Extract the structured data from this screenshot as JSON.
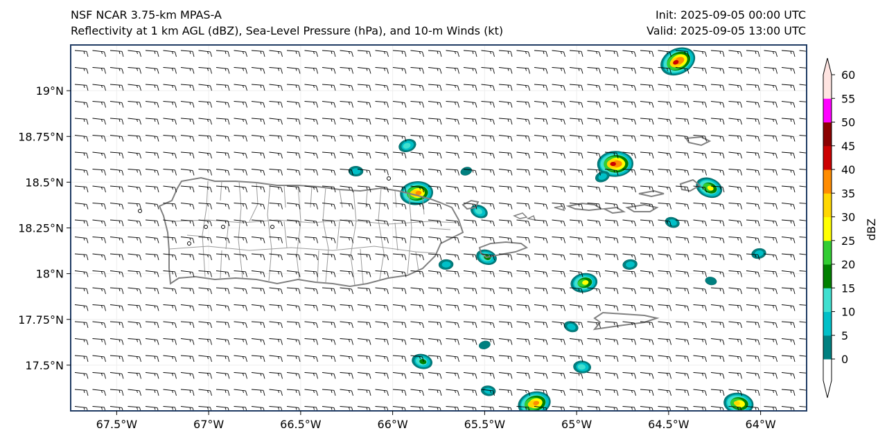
{
  "header": {
    "model": "NSF NCAR 3.75-km MPAS-A",
    "fields": "Reflectivity at 1 km AGL (dBZ), Sea-Level Pressure (hPa), and 10-m Winds (kt)",
    "init": "Init: 2025-09-05 00:00 UTC",
    "valid": "Valid: 2025-09-05 13:00 UTC"
  },
  "map": {
    "lon_range": [
      -67.75,
      -63.75
    ],
    "lat_range": [
      17.25,
      19.25
    ],
    "lon_ticks": [
      {
        "value": -67.5,
        "label": "67.5°W"
      },
      {
        "value": -67.0,
        "label": "67°W"
      },
      {
        "value": -66.5,
        "label": "66.5°W"
      },
      {
        "value": -66.0,
        "label": "66°W"
      },
      {
        "value": -65.5,
        "label": "65.5°W"
      },
      {
        "value": -65.0,
        "label": "65°W"
      },
      {
        "value": -64.5,
        "label": "64.5°W"
      },
      {
        "value": -64.0,
        "label": "64°W"
      }
    ],
    "lat_ticks": [
      {
        "value": 19.0,
        "label": "19°N"
      },
      {
        "value": 18.75,
        "label": "18.75°N"
      },
      {
        "value": 18.5,
        "label": "18.5°N"
      },
      {
        "value": 18.25,
        "label": "18.25°N"
      },
      {
        "value": 18.0,
        "label": "18°N"
      },
      {
        "value": 17.75,
        "label": "17.75°N"
      },
      {
        "value": 17.5,
        "label": "17.5°N"
      }
    ],
    "wind": {
      "direction_from": "east",
      "speed_kt": 15
    },
    "islands": [
      "Puerto Rico",
      "Vieques",
      "Culebra",
      "St. Thomas",
      "St. John",
      "Tortola",
      "St. Croix",
      "Virgin Gorda"
    ],
    "storm_cells": [
      {
        "lon": -64.45,
        "lat": 19.16,
        "max_dbz": 45
      },
      {
        "lon": -64.79,
        "lat": 18.6,
        "max_dbz": 45
      },
      {
        "lon": -64.28,
        "lat": 18.47,
        "max_dbz": 30
      },
      {
        "lon": -65.87,
        "lat": 18.44,
        "max_dbz": 40
      },
      {
        "lon": -65.49,
        "lat": 18.09,
        "max_dbz": 20
      },
      {
        "lon": -64.96,
        "lat": 17.95,
        "max_dbz": 30
      },
      {
        "lon": -65.84,
        "lat": 17.52,
        "max_dbz": 20
      },
      {
        "lon": -65.23,
        "lat": 17.29,
        "max_dbz": 40
      },
      {
        "lon": -64.12,
        "lat": 17.29,
        "max_dbz": 35
      },
      {
        "lon": -65.92,
        "lat": 18.7,
        "max_dbz": 15
      },
      {
        "lon": -64.97,
        "lat": 17.49,
        "max_dbz": 15
      },
      {
        "lon": -64.86,
        "lat": 18.53,
        "max_dbz": 10
      },
      {
        "lon": -66.2,
        "lat": 18.56,
        "max_dbz": 10
      },
      {
        "lon": -65.53,
        "lat": 18.34,
        "max_dbz": 15
      },
      {
        "lon": -65.71,
        "lat": 18.05,
        "max_dbz": 10
      },
      {
        "lon": -65.03,
        "lat": 17.71,
        "max_dbz": 10
      },
      {
        "lon": -64.71,
        "lat": 18.05,
        "max_dbz": 10
      },
      {
        "lon": -64.48,
        "lat": 18.28,
        "max_dbz": 10
      },
      {
        "lon": -64.01,
        "lat": 18.11,
        "max_dbz": 10
      },
      {
        "lon": -64.27,
        "lat": 17.96,
        "max_dbz": 5
      },
      {
        "lon": -65.5,
        "lat": 17.61,
        "max_dbz": 5
      },
      {
        "lon": -65.48,
        "lat": 17.36,
        "max_dbz": 10
      },
      {
        "lon": -65.6,
        "lat": 18.56,
        "max_dbz": 5
      }
    ]
  },
  "colorbar": {
    "label": "dBZ",
    "ticks": [
      "0",
      "5",
      "10",
      "15",
      "20",
      "25",
      "30",
      "35",
      "40",
      "45",
      "50",
      "55",
      "60"
    ],
    "colors": [
      "#008080",
      "#00c0c8",
      "#40e0d0",
      "#008000",
      "#32cd32",
      "#ffff00",
      "#ffd700",
      "#ff8c00",
      "#cc0000",
      "#8b0000",
      "#ff00ff",
      "#ffe4e1"
    ],
    "under_color": "#ffffff",
    "over_color": "#ffe4e1"
  },
  "colors": {
    "coastline": "#808080",
    "frame": "#1f3b63",
    "barbs": "#000000"
  }
}
